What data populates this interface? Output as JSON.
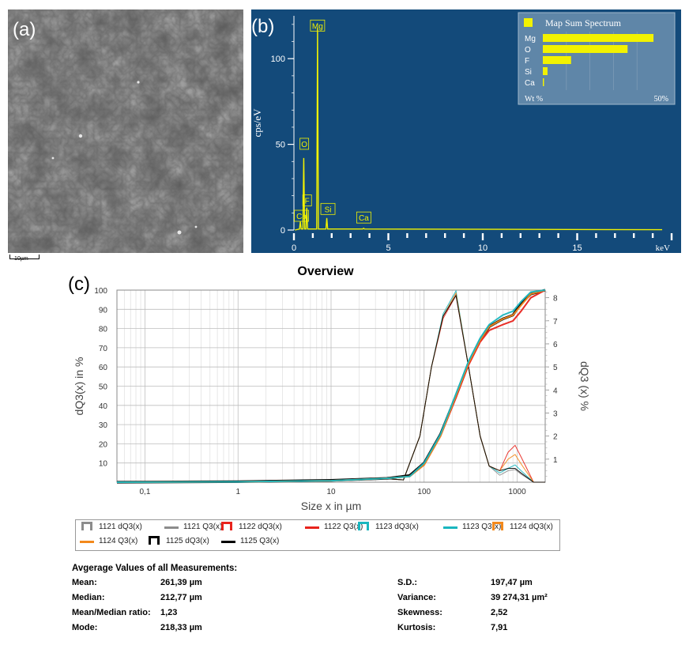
{
  "panels": {
    "a_label": "(a)",
    "b_label": "(b)",
    "c_label": "(c)",
    "sem_scale_label": "10µm"
  },
  "colors": {
    "eds_bg": "#134a7a",
    "eds_yellow": "#f2f200",
    "curve_grey": "#8c8c8c",
    "curve_red": "#e8231c",
    "curve_teal": "#19b6bf",
    "curve_orange": "#f3891c",
    "curve_black": "#000000"
  },
  "legend": {
    "items": [
      {
        "label": "1121 dQ3(x)",
        "kind": "cup",
        "color": "#8c8c8c"
      },
      {
        "label": "1121 Q3(x)",
        "kind": "line",
        "color": "#8c8c8c"
      },
      {
        "label": "1122 dQ3(x)",
        "kind": "cup",
        "color": "#e8231c"
      },
      {
        "label": "1122 Q3(x)",
        "kind": "line",
        "color": "#e8231c"
      },
      {
        "label": "1123 dQ3(x)",
        "kind": "cup",
        "color": "#19b6bf"
      },
      {
        "label": "1123 Q3(x)",
        "kind": "line",
        "color": "#19b6bf"
      },
      {
        "label": "1124 dQ3(x)",
        "kind": "cup",
        "color": "#f3891c"
      },
      {
        "label": "1124 Q3(x)",
        "kind": "line",
        "color": "#f3891c"
      },
      {
        "label": "1125 dQ3(x)",
        "kind": "cup",
        "color": "#000000"
      },
      {
        "label": "1125 Q3(x)",
        "kind": "line",
        "color": "#000000"
      }
    ]
  },
  "stats": {
    "title": "Avgerage Values of all Measurements:",
    "left": [
      {
        "label": "Mean:",
        "value": "261,39 µm"
      },
      {
        "label": "Median:",
        "value": "212,77 µm"
      },
      {
        "label": "Mean/Median ratio:",
        "value": "1,23"
      },
      {
        "label": "Mode:",
        "value": "218,33 µm"
      }
    ],
    "right": [
      {
        "label": "S.D.:",
        "value": "197,47 µm"
      },
      {
        "label": "Variance:",
        "value": "39 274,31 µm²"
      },
      {
        "label": "Skewness:",
        "value": "2,52"
      },
      {
        "label": "Kurtosis:",
        "value": "7,91"
      }
    ]
  },
  "chart_data": [
    {
      "id": "eds",
      "type": "line",
      "xlabel": "keV",
      "ylabel": "cps/eV",
      "xlim": [
        0,
        20
      ],
      "ylim": [
        0,
        125
      ],
      "x_ticks": [
        0,
        5,
        10,
        15
      ],
      "y_ticks": [
        0,
        50,
        100
      ],
      "peaks": [
        {
          "element": "Ca",
          "kev": 0.34,
          "cps": 5
        },
        {
          "element": "O",
          "kev": 0.52,
          "cps": 42
        },
        {
          "element": "F",
          "kev": 0.68,
          "cps": 13
        },
        {
          "element": "Mg",
          "kev": 1.25,
          "cps": 118
        },
        {
          "element": "Si",
          "kev": 1.74,
          "cps": 7
        },
        {
          "element": "Ca",
          "kev": 3.69,
          "cps": 1
        }
      ],
      "peak_labels": [
        {
          "text": "Mg",
          "kev": 1.25,
          "cps": 117
        },
        {
          "text": "O",
          "kev": 0.55,
          "cps": 48
        },
        {
          "text": "F",
          "kev": 0.7,
          "cps": 15
        },
        {
          "text": "Ca",
          "kev": 0.4,
          "cps": 6
        },
        {
          "text": "Si",
          "kev": 1.8,
          "cps": 10
        },
        {
          "text": "Ca",
          "kev": 3.7,
          "cps": 5
        }
      ],
      "inset": {
        "title": "Map Sum Spectrum",
        "xlabel": "Wt %",
        "xmax_label": "50%",
        "categories": [
          "Mg",
          "O",
          "F",
          "Si",
          "Ca"
        ],
        "values": [
          47,
          36,
          12,
          2,
          0.4
        ],
        "xlim": [
          0,
          50
        ]
      }
    },
    {
      "id": "psd",
      "type": "line",
      "title": "Overview",
      "xlabel": "Size x in µm",
      "ylabel": "dQ3(x) in %",
      "y2label": "dQ3 (x) %",
      "x_scale": "log",
      "xlim": [
        0.05,
        2000
      ],
      "ylim": [
        0,
        100
      ],
      "y2lim": [
        0,
        8.33
      ],
      "x_ticks": [
        "0,1",
        "1",
        "10",
        "100",
        "1000"
      ],
      "x_tick_values": [
        0.1,
        1,
        10,
        100,
        1000
      ],
      "y_ticks": [
        10,
        20,
        30,
        40,
        50,
        60,
        70,
        80,
        90,
        100
      ],
      "y2_ticks": [
        1,
        2,
        3,
        4,
        5,
        6,
        7,
        8
      ],
      "grid": true,
      "cumulative": [
        {
          "name": "1125 Q3(x)",
          "color": "#000000",
          "points": [
            [
              0.05,
              0
            ],
            [
              1,
              0.3
            ],
            [
              10,
              1
            ],
            [
              40,
              2
            ],
            [
              70,
              3.5
            ],
            [
              100,
              10
            ],
            [
              150,
              25
            ],
            [
              220,
              45
            ],
            [
              300,
              62
            ],
            [
              400,
              74
            ],
            [
              500,
              81
            ],
            [
              700,
              85
            ],
            [
              900,
              87
            ],
            [
              1100,
              93
            ],
            [
              1400,
              98
            ],
            [
              2000,
              100
            ]
          ]
        },
        {
          "name": "1122 Q3(x)",
          "color": "#e8231c",
          "points": [
            [
              0.05,
              0
            ],
            [
              1,
              0.2
            ],
            [
              10,
              0.8
            ],
            [
              40,
              2
            ],
            [
              70,
              3
            ],
            [
              100,
              9
            ],
            [
              150,
              24
            ],
            [
              220,
              44
            ],
            [
              300,
              61
            ],
            [
              400,
              73
            ],
            [
              500,
              79
            ],
            [
              700,
              82
            ],
            [
              900,
              84
            ],
            [
              1100,
              89
            ],
            [
              1400,
              96
            ],
            [
              2000,
              100
            ]
          ]
        },
        {
          "name": "1124 Q3(x)",
          "color": "#f3891c",
          "points": [
            [
              0.05,
              0
            ],
            [
              1,
              0.2
            ],
            [
              10,
              0.8
            ],
            [
              40,
              2
            ],
            [
              70,
              3
            ],
            [
              100,
              9
            ],
            [
              150,
              24
            ],
            [
              220,
              45
            ],
            [
              300,
              62
            ],
            [
              400,
              74
            ],
            [
              500,
              81
            ],
            [
              700,
              85
            ],
            [
              900,
              87
            ],
            [
              1100,
              92
            ],
            [
              1400,
              98
            ],
            [
              2000,
              100
            ]
          ]
        },
        {
          "name": "1123 Q3(x)",
          "color": "#19b6bf",
          "points": [
            [
              0.05,
              0
            ],
            [
              1,
              0.2
            ],
            [
              10,
              0.8
            ],
            [
              40,
              2
            ],
            [
              70,
              3
            ],
            [
              100,
              10
            ],
            [
              150,
              25
            ],
            [
              220,
              46
            ],
            [
              300,
              63
            ],
            [
              400,
              75
            ],
            [
              500,
              82
            ],
            [
              700,
              87
            ],
            [
              900,
              89
            ],
            [
              1100,
              94
            ],
            [
              1400,
              99
            ],
            [
              2000,
              100
            ]
          ]
        }
      ],
      "density": [
        {
          "name": "1121 dQ3(x)",
          "color": "#8c8c8c",
          "points": [
            [
              0.05,
              0
            ],
            [
              1,
              0.05
            ],
            [
              10,
              0.08
            ],
            [
              40,
              0.15
            ],
            [
              60,
              0.1
            ],
            [
              90,
              2
            ],
            [
              120,
              5
            ],
            [
              160,
              7.2
            ],
            [
              220,
              8.2
            ],
            [
              300,
              5
            ],
            [
              400,
              2
            ],
            [
              500,
              0.7
            ],
            [
              650,
              0.3
            ],
            [
              800,
              0.5
            ],
            [
              950,
              0.55
            ],
            [
              1100,
              0.35
            ],
            [
              1500,
              0
            ],
            [
              2000,
              0
            ]
          ]
        },
        {
          "name": "1122 dQ3(x)",
          "color": "#e8231c",
          "points": [
            [
              0.05,
              0
            ],
            [
              1,
              0.05
            ],
            [
              10,
              0.08
            ],
            [
              40,
              0.15
            ],
            [
              60,
              0.1
            ],
            [
              90,
              2
            ],
            [
              120,
              5
            ],
            [
              160,
              7.1
            ],
            [
              220,
              8.1
            ],
            [
              300,
              5
            ],
            [
              400,
              2
            ],
            [
              500,
              0.7
            ],
            [
              650,
              0.5
            ],
            [
              800,
              1.3
            ],
            [
              950,
              1.6
            ],
            [
              1100,
              1.1
            ],
            [
              1500,
              0
            ],
            [
              2000,
              0
            ]
          ]
        },
        {
          "name": "1123 dQ3(x)",
          "color": "#19b6bf",
          "points": [
            [
              0.05,
              0
            ],
            [
              1,
              0.05
            ],
            [
              10,
              0.08
            ],
            [
              40,
              0.15
            ],
            [
              60,
              0.1
            ],
            [
              90,
              2
            ],
            [
              120,
              5
            ],
            [
              160,
              7.3
            ],
            [
              220,
              8.3
            ],
            [
              300,
              5
            ],
            [
              400,
              2
            ],
            [
              500,
              0.7
            ],
            [
              650,
              0.4
            ],
            [
              800,
              0.6
            ],
            [
              950,
              0.75
            ],
            [
              1100,
              0.5
            ],
            [
              1500,
              0
            ],
            [
              2000,
              0
            ]
          ]
        },
        {
          "name": "1124 dQ3(x)",
          "color": "#f3891c",
          "points": [
            [
              0.05,
              0
            ],
            [
              1,
              0.05
            ],
            [
              10,
              0.08
            ],
            [
              40,
              0.15
            ],
            [
              60,
              0.1
            ],
            [
              90,
              2
            ],
            [
              120,
              5
            ],
            [
              160,
              7.2
            ],
            [
              220,
              8.2
            ],
            [
              300,
              5
            ],
            [
              400,
              2
            ],
            [
              500,
              0.7
            ],
            [
              650,
              0.5
            ],
            [
              800,
              1
            ],
            [
              950,
              1.2
            ],
            [
              1100,
              0.8
            ],
            [
              1500,
              0
            ],
            [
              2000,
              0
            ]
          ]
        },
        {
          "name": "1125 dQ3(x)",
          "color": "#000000",
          "points": [
            [
              0.05,
              0
            ],
            [
              1,
              0.05
            ],
            [
              10,
              0.08
            ],
            [
              40,
              0.15
            ],
            [
              60,
              0.1
            ],
            [
              90,
              2
            ],
            [
              120,
              5
            ],
            [
              160,
              7.2
            ],
            [
              220,
              8.1
            ],
            [
              300,
              5
            ],
            [
              400,
              2
            ],
            [
              500,
              0.7
            ],
            [
              650,
              0.5
            ],
            [
              800,
              0.6
            ],
            [
              950,
              0.6
            ],
            [
              1100,
              0.4
            ],
            [
              1500,
              0
            ],
            [
              2000,
              0
            ]
          ]
        }
      ]
    }
  ]
}
